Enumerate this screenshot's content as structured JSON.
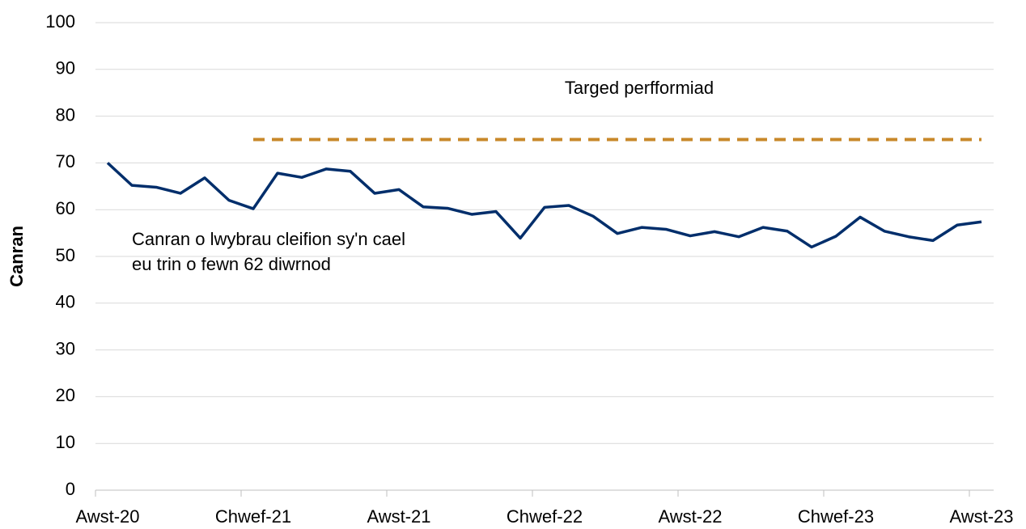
{
  "chart_data": {
    "type": "line",
    "y_label": "Canran",
    "categories": [
      "Awst-20",
      null,
      null,
      null,
      null,
      null,
      "Chwef-21",
      null,
      null,
      null,
      null,
      null,
      "Awst-21",
      null,
      null,
      null,
      null,
      null,
      "Chwef-22",
      null,
      null,
      null,
      null,
      null,
      "Awst-22",
      null,
      null,
      null,
      null,
      null,
      "Chwef-23",
      null,
      null,
      null,
      null,
      null,
      "Awst-23"
    ],
    "series": [
      {
        "color": "#002e6b",
        "dash": false,
        "values": [
          70,
          65.2,
          64.8,
          63.5,
          66.8,
          62,
          60.2,
          67.8,
          66.9,
          68.7,
          68.2,
          63.5,
          64.3,
          60.6,
          60.3,
          59,
          59.6,
          53.9,
          60.5,
          60.9,
          58.6,
          54.9,
          56.2,
          55.8,
          54.4,
          55.3,
          54.2,
          56.2,
          55.4,
          52,
          54.3,
          58.4,
          55.4,
          54.2,
          53.4,
          56.7,
          57.4
        ]
      },
      {
        "color": "#c8882a",
        "dash": true,
        "values": [
          null,
          null,
          null,
          null,
          null,
          null,
          75,
          75,
          75,
          75,
          75,
          75,
          75,
          75,
          75,
          75,
          75,
          75,
          75,
          75,
          75,
          75,
          75,
          75,
          75,
          75,
          75,
          75,
          75,
          75,
          75,
          75,
          75,
          75,
          75,
          75,
          75
        ]
      }
    ],
    "annotations": [
      {
        "lines": [
          "Targed perfformiad"
        ]
      },
      {
        "lines": [
          "Canran o lwybrau cleifion sy'n cael",
          "eu trin o fewn 62 diwrnod"
        ]
      }
    ],
    "ylim": [
      0,
      100
    ],
    "yticks": [
      0,
      10,
      20,
      30,
      40,
      50,
      60,
      70,
      80,
      90,
      100
    ],
    "grid": true
  }
}
